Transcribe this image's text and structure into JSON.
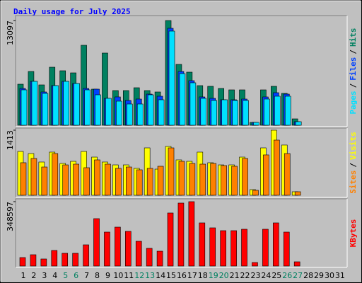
{
  "chart_data": [
    {
      "type": "bar",
      "title": "Daily usage for July 2025",
      "ylim": [
        0,
        13097
      ],
      "yticks": [
        13097
      ],
      "legend_separator": "/",
      "series": [
        {
          "name": "Hits",
          "color": "#008060",
          "values": [
            5133,
            6726,
            5045,
            7257,
            6815,
            6549,
            10001,
            4514,
            9027,
            4337,
            4337,
            4691,
            4337,
            4160,
            13097,
            7611,
            6638,
            4956,
            4868,
            4602,
            4425,
            4425,
            354,
            4425,
            4868,
            3983,
            797,
            0,
            0,
            0,
            0
          ]
        },
        {
          "name": "Files",
          "color": "#0040ff",
          "values": [
            4602,
            5487,
            4160,
            4956,
            5487,
            5222,
            4602,
            4514,
            3363,
            3540,
            3098,
            3275,
            3894,
            3629,
            12125,
            6726,
            5576,
            3540,
            3363,
            3186,
            3186,
            3275,
            354,
            3540,
            4071,
            3894,
            443,
            0,
            0,
            0,
            0
          ]
        },
        {
          "name": "Pages",
          "color": "#00e0ff",
          "values": [
            4425,
            5487,
            3983,
            4956,
            5487,
            5222,
            4425,
            3806,
            3363,
            3009,
            2655,
            2655,
            3806,
            3186,
            11771,
            6461,
            5310,
            3363,
            3098,
            3186,
            3098,
            3098,
            354,
            3275,
            3629,
            3629,
            443,
            0,
            0,
            0,
            0
          ]
        }
      ]
    },
    {
      "type": "bar",
      "ylim": [
        0,
        1413
      ],
      "yticks": [
        1413
      ],
      "legend_separator": "/",
      "series": [
        {
          "name": "Visits",
          "color": "#ffff00",
          "values": [
            952,
            906,
            722,
            937,
            691,
            737,
            952,
            829,
            722,
            660,
            660,
            584,
            1029,
            568,
            1060,
            768,
            737,
            937,
            707,
            660,
            660,
            829,
            123,
            1029,
            1413,
            1091,
            77,
            0,
            0,
            0,
            0
          ]
        },
        {
          "name": "Sites",
          "color": "#ff8000",
          "values": [
            707,
            799,
            614,
            906,
            660,
            676,
            599,
            768,
            676,
            584,
            614,
            553,
            584,
            630,
            1029,
            737,
            691,
            676,
            691,
            645,
            630,
            799,
            108,
            876,
            1198,
            906,
            77,
            0,
            0,
            0,
            0
          ]
        }
      ]
    },
    {
      "type": "bar",
      "ylim": [
        0,
        348597
      ],
      "yticks": [
        348597
      ],
      "categories": [
        "1",
        "2",
        "3",
        "4",
        "5",
        "6",
        "7",
        "8",
        "9",
        "10",
        "11",
        "12",
        "13",
        "14",
        "15",
        "16",
        "17",
        "18",
        "19",
        "20",
        "21",
        "22",
        "23",
        "24",
        "25",
        "26",
        "27",
        "28",
        "29",
        "30",
        "31"
      ],
      "category_colors": [
        "#000000",
        "#000000",
        "#000000",
        "#000000",
        "#008060",
        "#008060",
        "#000000",
        "#000000",
        "#000000",
        "#000000",
        "#000000",
        "#008060",
        "#008060",
        "#000000",
        "#000000",
        "#000000",
        "#000000",
        "#000000",
        "#008060",
        "#008060",
        "#000000",
        "#000000",
        "#000000",
        "#000000",
        "#000000",
        "#008060",
        "#008060",
        "#000000",
        "#000000",
        "#000000",
        "#000000"
      ],
      "series": [
        {
          "name": "KBytes",
          "color": "#ff0000",
          "values": [
            45972,
            61296,
            38310,
            84282,
            68958,
            68958,
            114930,
            256677,
            183888,
            210705,
            187719,
            134085,
            95775,
            80451,
            287325,
            340959,
            348597,
            233691,
            206874,
            191550,
            191550,
            199212,
            19155,
            199212,
            233691,
            183888,
            22986,
            0,
            0,
            0,
            0
          ]
        }
      ]
    }
  ]
}
